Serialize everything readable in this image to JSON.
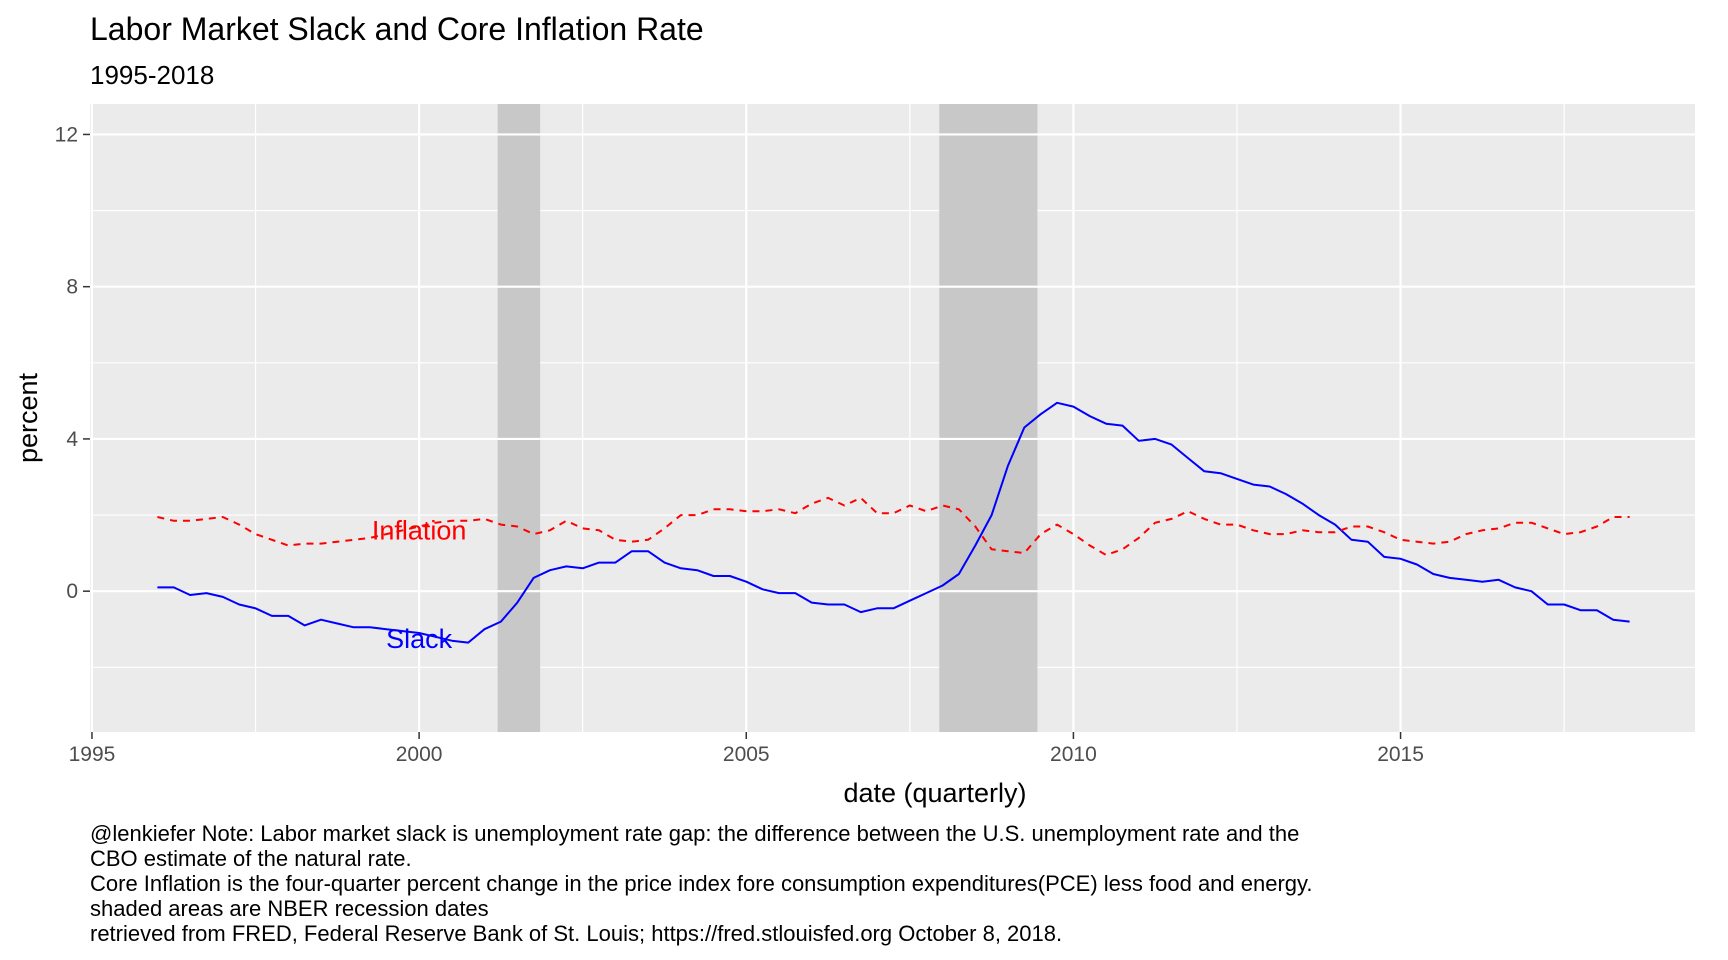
{
  "chart_data": {
    "type": "line",
    "title": "Labor Market Slack and Core Inflation Rate",
    "subtitle": "1995-2018",
    "xlabel": "date (quarterly)",
    "ylabel": "percent",
    "xlim": [
      1994.97,
      2019.5
    ],
    "ylim": [
      -3.7,
      12.8
    ],
    "x_ticks": [
      1995,
      2000,
      2005,
      2010,
      2015
    ],
    "x_tick_labels": [
      "1995",
      "2000",
      "2005",
      "2010",
      "2015"
    ],
    "y_ticks": [
      0,
      4,
      8,
      12
    ],
    "y_tick_labels": [
      "0",
      "4",
      "8",
      "12"
    ],
    "grid": true,
    "legend": "none",
    "recessions": [
      {
        "start": 2001.2,
        "end": 2001.85
      },
      {
        "start": 2007.95,
        "end": 2009.45
      }
    ],
    "series": [
      {
        "name": "Slack",
        "color": "#0000ff",
        "linestyle": "solid",
        "label": {
          "text": "Slack",
          "x": 2000.0,
          "y": -1.25
        },
        "x": [
          1996.0,
          1996.25,
          1996.5,
          1996.75,
          1997.0,
          1997.25,
          1997.5,
          1997.75,
          1998.0,
          1998.25,
          1998.5,
          1998.75,
          1999.0,
          1999.25,
          1999.5,
          1999.75,
          2000.0,
          2000.25,
          2000.5,
          2000.75,
          2001.0,
          2001.25,
          2001.5,
          2001.75,
          2002.0,
          2002.25,
          2002.5,
          2002.75,
          2003.0,
          2003.25,
          2003.5,
          2003.75,
          2004.0,
          2004.25,
          2004.5,
          2004.75,
          2005.0,
          2005.25,
          2005.5,
          2005.75,
          2006.0,
          2006.25,
          2006.5,
          2006.75,
          2007.0,
          2007.25,
          2007.5,
          2007.75,
          2008.0,
          2008.25,
          2008.5,
          2008.75,
          2009.0,
          2009.25,
          2009.5,
          2009.75,
          2010.0,
          2010.25,
          2010.5,
          2010.75,
          2011.0,
          2011.25,
          2011.5,
          2011.75,
          2012.0,
          2012.25,
          2012.5,
          2012.75,
          2013.0,
          2013.25,
          2013.5,
          2013.75,
          2014.0,
          2014.25,
          2014.5,
          2014.75,
          2015.0,
          2015.25,
          2015.5,
          2015.75,
          2016.0,
          2016.25,
          2016.5,
          2016.75,
          2017.0,
          2017.25,
          2017.5,
          2017.75,
          2018.0,
          2018.25,
          2018.5
        ],
        "values": [
          0.1,
          0.1,
          -0.1,
          -0.05,
          -0.15,
          -0.35,
          -0.45,
          -0.65,
          -0.65,
          -0.9,
          -0.75,
          -0.85,
          -0.95,
          -0.95,
          -1.0,
          -1.05,
          -1.1,
          -1.2,
          -1.3,
          -1.35,
          -1.0,
          -0.8,
          -0.3,
          0.35,
          0.55,
          0.65,
          0.6,
          0.75,
          0.75,
          1.05,
          1.05,
          0.75,
          0.6,
          0.55,
          0.4,
          0.4,
          0.25,
          0.05,
          -0.05,
          -0.05,
          -0.3,
          -0.35,
          -0.35,
          -0.55,
          -0.45,
          -0.45,
          -0.25,
          -0.05,
          0.15,
          0.45,
          1.2,
          2.0,
          3.3,
          4.3,
          4.65,
          4.95,
          4.85,
          4.6,
          4.4,
          4.35,
          3.95,
          4.0,
          3.85,
          3.5,
          3.15,
          3.1,
          2.95,
          2.8,
          2.75,
          2.55,
          2.3,
          2.0,
          1.75,
          1.35,
          1.3,
          0.9,
          0.85,
          0.7,
          0.45,
          0.35,
          0.3,
          0.25,
          0.3,
          0.1,
          0.0,
          -0.35,
          -0.35,
          -0.5,
          -0.5,
          -0.75,
          -0.8
        ]
      },
      {
        "name": "Inflation",
        "color": "#ff0000",
        "linestyle": "dashed",
        "label": {
          "text": "Inflation",
          "x": 2000.0,
          "y": 1.6
        },
        "x": [
          1996.0,
          1996.25,
          1996.5,
          1996.75,
          1997.0,
          1997.25,
          1997.5,
          1997.75,
          1998.0,
          1998.25,
          1998.5,
          1998.75,
          1999.0,
          1999.25,
          1999.5,
          1999.75,
          2000.0,
          2000.25,
          2000.5,
          2000.75,
          2001.0,
          2001.25,
          2001.5,
          2001.75,
          2002.0,
          2002.25,
          2002.5,
          2002.75,
          2003.0,
          2003.25,
          2003.5,
          2003.75,
          2004.0,
          2004.25,
          2004.5,
          2004.75,
          2005.0,
          2005.25,
          2005.5,
          2005.75,
          2006.0,
          2006.25,
          2006.5,
          2006.75,
          2007.0,
          2007.25,
          2007.5,
          2007.75,
          2008.0,
          2008.25,
          2008.5,
          2008.75,
          2009.0,
          2009.25,
          2009.5,
          2009.75,
          2010.0,
          2010.25,
          2010.5,
          2010.75,
          2011.0,
          2011.25,
          2011.5,
          2011.75,
          2012.0,
          2012.25,
          2012.5,
          2012.75,
          2013.0,
          2013.25,
          2013.5,
          2013.75,
          2014.0,
          2014.25,
          2014.5,
          2014.75,
          2015.0,
          2015.25,
          2015.5,
          2015.75,
          2016.0,
          2016.25,
          2016.5,
          2016.75,
          2017.0,
          2017.25,
          2017.5,
          2017.75,
          2018.0,
          2018.25,
          2018.5
        ],
        "values": [
          1.95,
          1.85,
          1.85,
          1.9,
          1.95,
          1.75,
          1.5,
          1.35,
          1.2,
          1.25,
          1.25,
          1.3,
          1.35,
          1.4,
          1.5,
          1.6,
          1.7,
          1.8,
          1.85,
          1.85,
          1.9,
          1.75,
          1.7,
          1.5,
          1.6,
          1.85,
          1.65,
          1.6,
          1.35,
          1.3,
          1.35,
          1.65,
          2.0,
          2.0,
          2.15,
          2.15,
          2.1,
          2.1,
          2.15,
          2.05,
          2.3,
          2.45,
          2.25,
          2.45,
          2.05,
          2.05,
          2.25,
          2.1,
          2.25,
          2.15,
          1.7,
          1.1,
          1.05,
          1.0,
          1.5,
          1.75,
          1.5,
          1.2,
          0.95,
          1.1,
          1.4,
          1.8,
          1.9,
          2.1,
          1.9,
          1.75,
          1.75,
          1.6,
          1.5,
          1.5,
          1.6,
          1.55,
          1.55,
          1.7,
          1.7,
          1.55,
          1.35,
          1.3,
          1.25,
          1.3,
          1.5,
          1.6,
          1.65,
          1.8,
          1.8,
          1.65,
          1.5,
          1.55,
          1.7,
          1.95,
          1.95
        ]
      }
    ]
  },
  "caption_lines": [
    "@lenkiefer Note: Labor market slack is unemployment rate gap: the difference between the U.S. unemployment rate and the",
    "CBO estimate of the natural rate.",
    "Core Inflation is the four-quarter percent change in the price index fore consumption expenditures(PCE) less food and energy.",
    "shaded areas are NBER recession dates",
    "retrieved from FRED, Federal Reserve Bank of St. Louis; https://fred.stlouisfed.org October 8, 2018."
  ],
  "colors": {
    "panel_background": "#ebebeb",
    "grid_major": "#ffffff",
    "recession_shade": "#c8c8c8",
    "axis_text": "#4d4d4d",
    "title_text": "#000000"
  }
}
